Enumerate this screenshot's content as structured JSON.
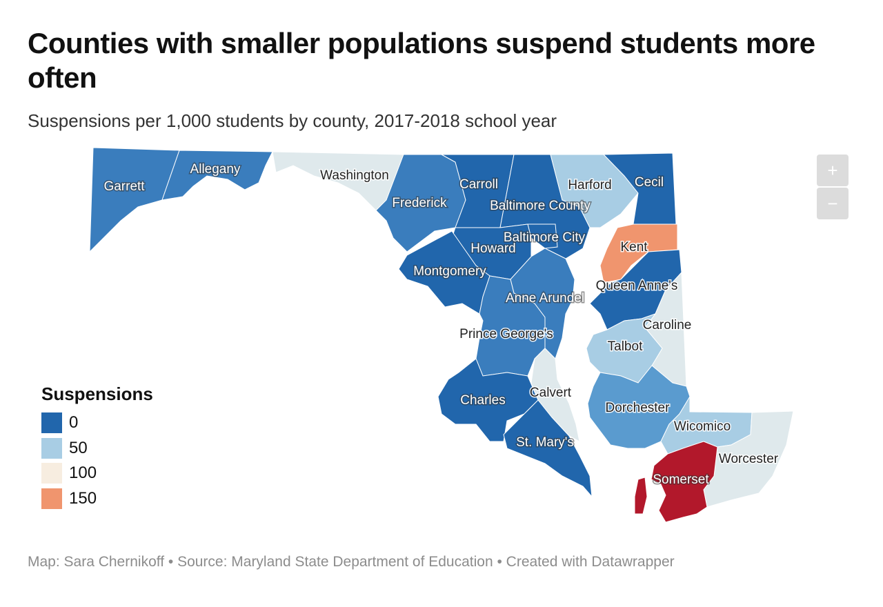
{
  "header": {
    "title": "Counties with smaller populations suspend students more often",
    "subtitle": "Suspensions per 1,000 students by county, 2017-2018 school year"
  },
  "colors": {
    "darkblue": "#2166ac",
    "medblue": "#3a7dbd",
    "blue": "#5a9bcf",
    "lightblue": "#a8cde4",
    "paleblue": "#dfe9ec",
    "cream": "#f7ede0",
    "salmon": "#f0956e",
    "red": "#b2182b"
  },
  "legend": {
    "title": "Suspensions",
    "items": [
      {
        "label": "0",
        "color": "#2166ac"
      },
      {
        "label": "50",
        "color": "#a8cde4"
      },
      {
        "label": "100",
        "color": "#f7ede0"
      },
      {
        "label": "150",
        "color": "#f0956e"
      }
    ]
  },
  "counties": [
    {
      "name": "Garrett",
      "fill": "medblue"
    },
    {
      "name": "Allegany",
      "fill": "medblue"
    },
    {
      "name": "Washington",
      "fill": "paleblue"
    },
    {
      "name": "Frederick",
      "fill": "medblue"
    },
    {
      "name": "Carroll",
      "fill": "darkblue"
    },
    {
      "name": "Baltimore County",
      "fill": "darkblue"
    },
    {
      "name": "Harford",
      "fill": "lightblue"
    },
    {
      "name": "Cecil",
      "fill": "darkblue"
    },
    {
      "name": "Baltimore City",
      "fill": "darkblue"
    },
    {
      "name": "Howard",
      "fill": "darkblue"
    },
    {
      "name": "Montgomery",
      "fill": "darkblue"
    },
    {
      "name": "Kent",
      "fill": "salmon"
    },
    {
      "name": "Queen Anne's",
      "fill": "darkblue"
    },
    {
      "name": "Anne Arundel",
      "fill": "medblue"
    },
    {
      "name": "Caroline",
      "fill": "paleblue"
    },
    {
      "name": "Prince George's",
      "fill": "medblue"
    },
    {
      "name": "Talbot",
      "fill": "lightblue"
    },
    {
      "name": "Calvert",
      "fill": "paleblue"
    },
    {
      "name": "Charles",
      "fill": "darkblue"
    },
    {
      "name": "Dorchester",
      "fill": "blue"
    },
    {
      "name": "Wicomico",
      "fill": "lightblue"
    },
    {
      "name": "St. Mary's",
      "fill": "darkblue"
    },
    {
      "name": "Worcester",
      "fill": "paleblue"
    },
    {
      "name": "Somerset",
      "fill": "red"
    }
  ],
  "controls": {
    "zoom_in": "+",
    "zoom_out": "−"
  },
  "footer": "Map: Sara Chernikoff • Source: Maryland State Department of Education • Created with Datawrapper"
}
